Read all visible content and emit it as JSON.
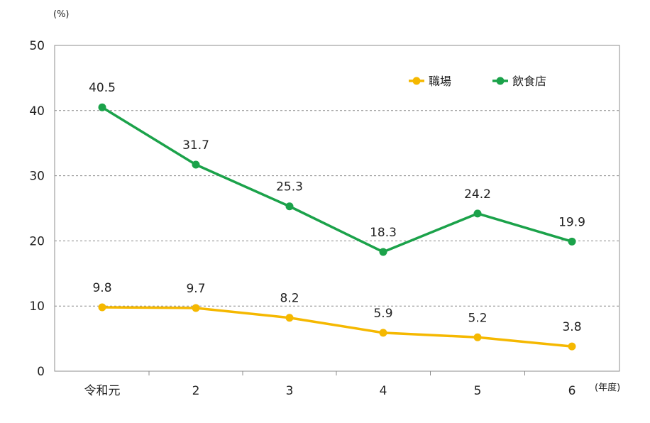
{
  "chart_data": {
    "type": "line",
    "y_unit": "(%)",
    "x_unit": "(年度)",
    "categories": [
      "令和元",
      "2",
      "3",
      "4",
      "5",
      "6"
    ],
    "ylim": [
      0,
      50
    ],
    "yticks": [
      0,
      10,
      20,
      30,
      40,
      50
    ],
    "grid": true,
    "legend_position": "top-right",
    "series": [
      {
        "name": "職場",
        "color": "#F5B800",
        "values": [
          9.8,
          9.7,
          8.2,
          5.9,
          5.2,
          3.8
        ],
        "labels": [
          "9.8",
          "9.7",
          "8.2",
          "5.9",
          "5.2",
          "3.8"
        ]
      },
      {
        "name": "飲食店",
        "color": "#1BA24A",
        "values": [
          40.5,
          31.7,
          25.3,
          18.3,
          24.2,
          19.9
        ],
        "labels": [
          "40.5",
          "31.7",
          "25.3",
          "18.3",
          "24.2",
          "19.9"
        ]
      }
    ]
  }
}
